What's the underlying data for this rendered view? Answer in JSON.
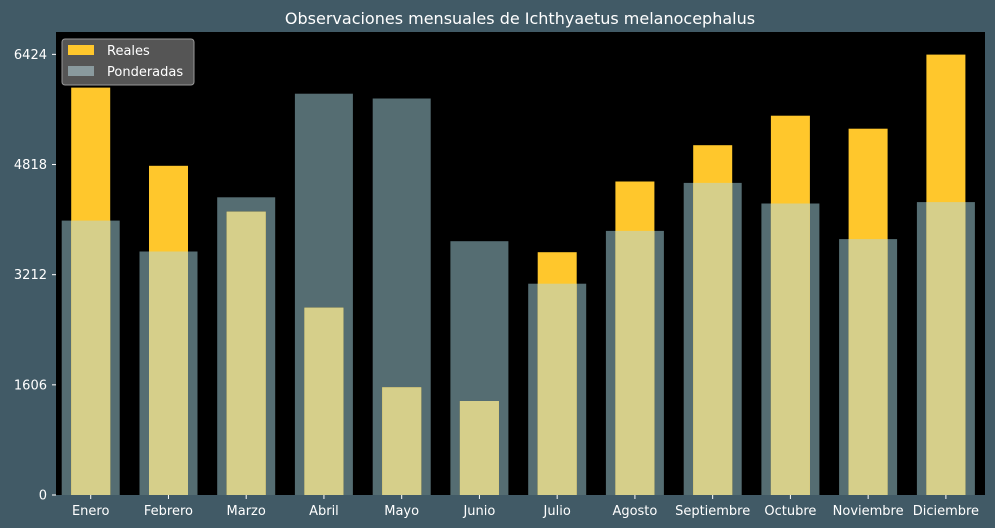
{
  "chart_data": {
    "type": "bar",
    "title": "Observaciones mensuales de Ichthyaetus melanocephalus",
    "categories": [
      "Enero",
      "Febrero",
      "Marzo",
      "Abril",
      "Mayo",
      "Junio",
      "Julio",
      "Agosto",
      "Septiembre",
      "Octubre",
      "Noviembre",
      "Diciembre"
    ],
    "series": [
      {
        "name": "Reales",
        "values": [
          5940,
          4800,
          4130,
          2730,
          1570,
          1370,
          3540,
          4570,
          5100,
          5530,
          5340,
          6420
        ],
        "color": "#ffc72c"
      },
      {
        "name": "Ponderadas",
        "values": [
          4000,
          3550,
          4340,
          5850,
          5780,
          3700,
          3080,
          3850,
          4550,
          4250,
          3730,
          4270
        ],
        "color": "#b3c6c9"
      }
    ],
    "yticks": [
      0,
      1606,
      3212,
      4818,
      6424
    ],
    "ylim": [
      0,
      6750
    ],
    "xlabel": "",
    "ylabel": "",
    "legend_position": "top-left",
    "colors": {
      "background": "#415a66",
      "plot_bg": "#000000",
      "text": "#ffffff",
      "legend_bg": "#555555"
    }
  }
}
